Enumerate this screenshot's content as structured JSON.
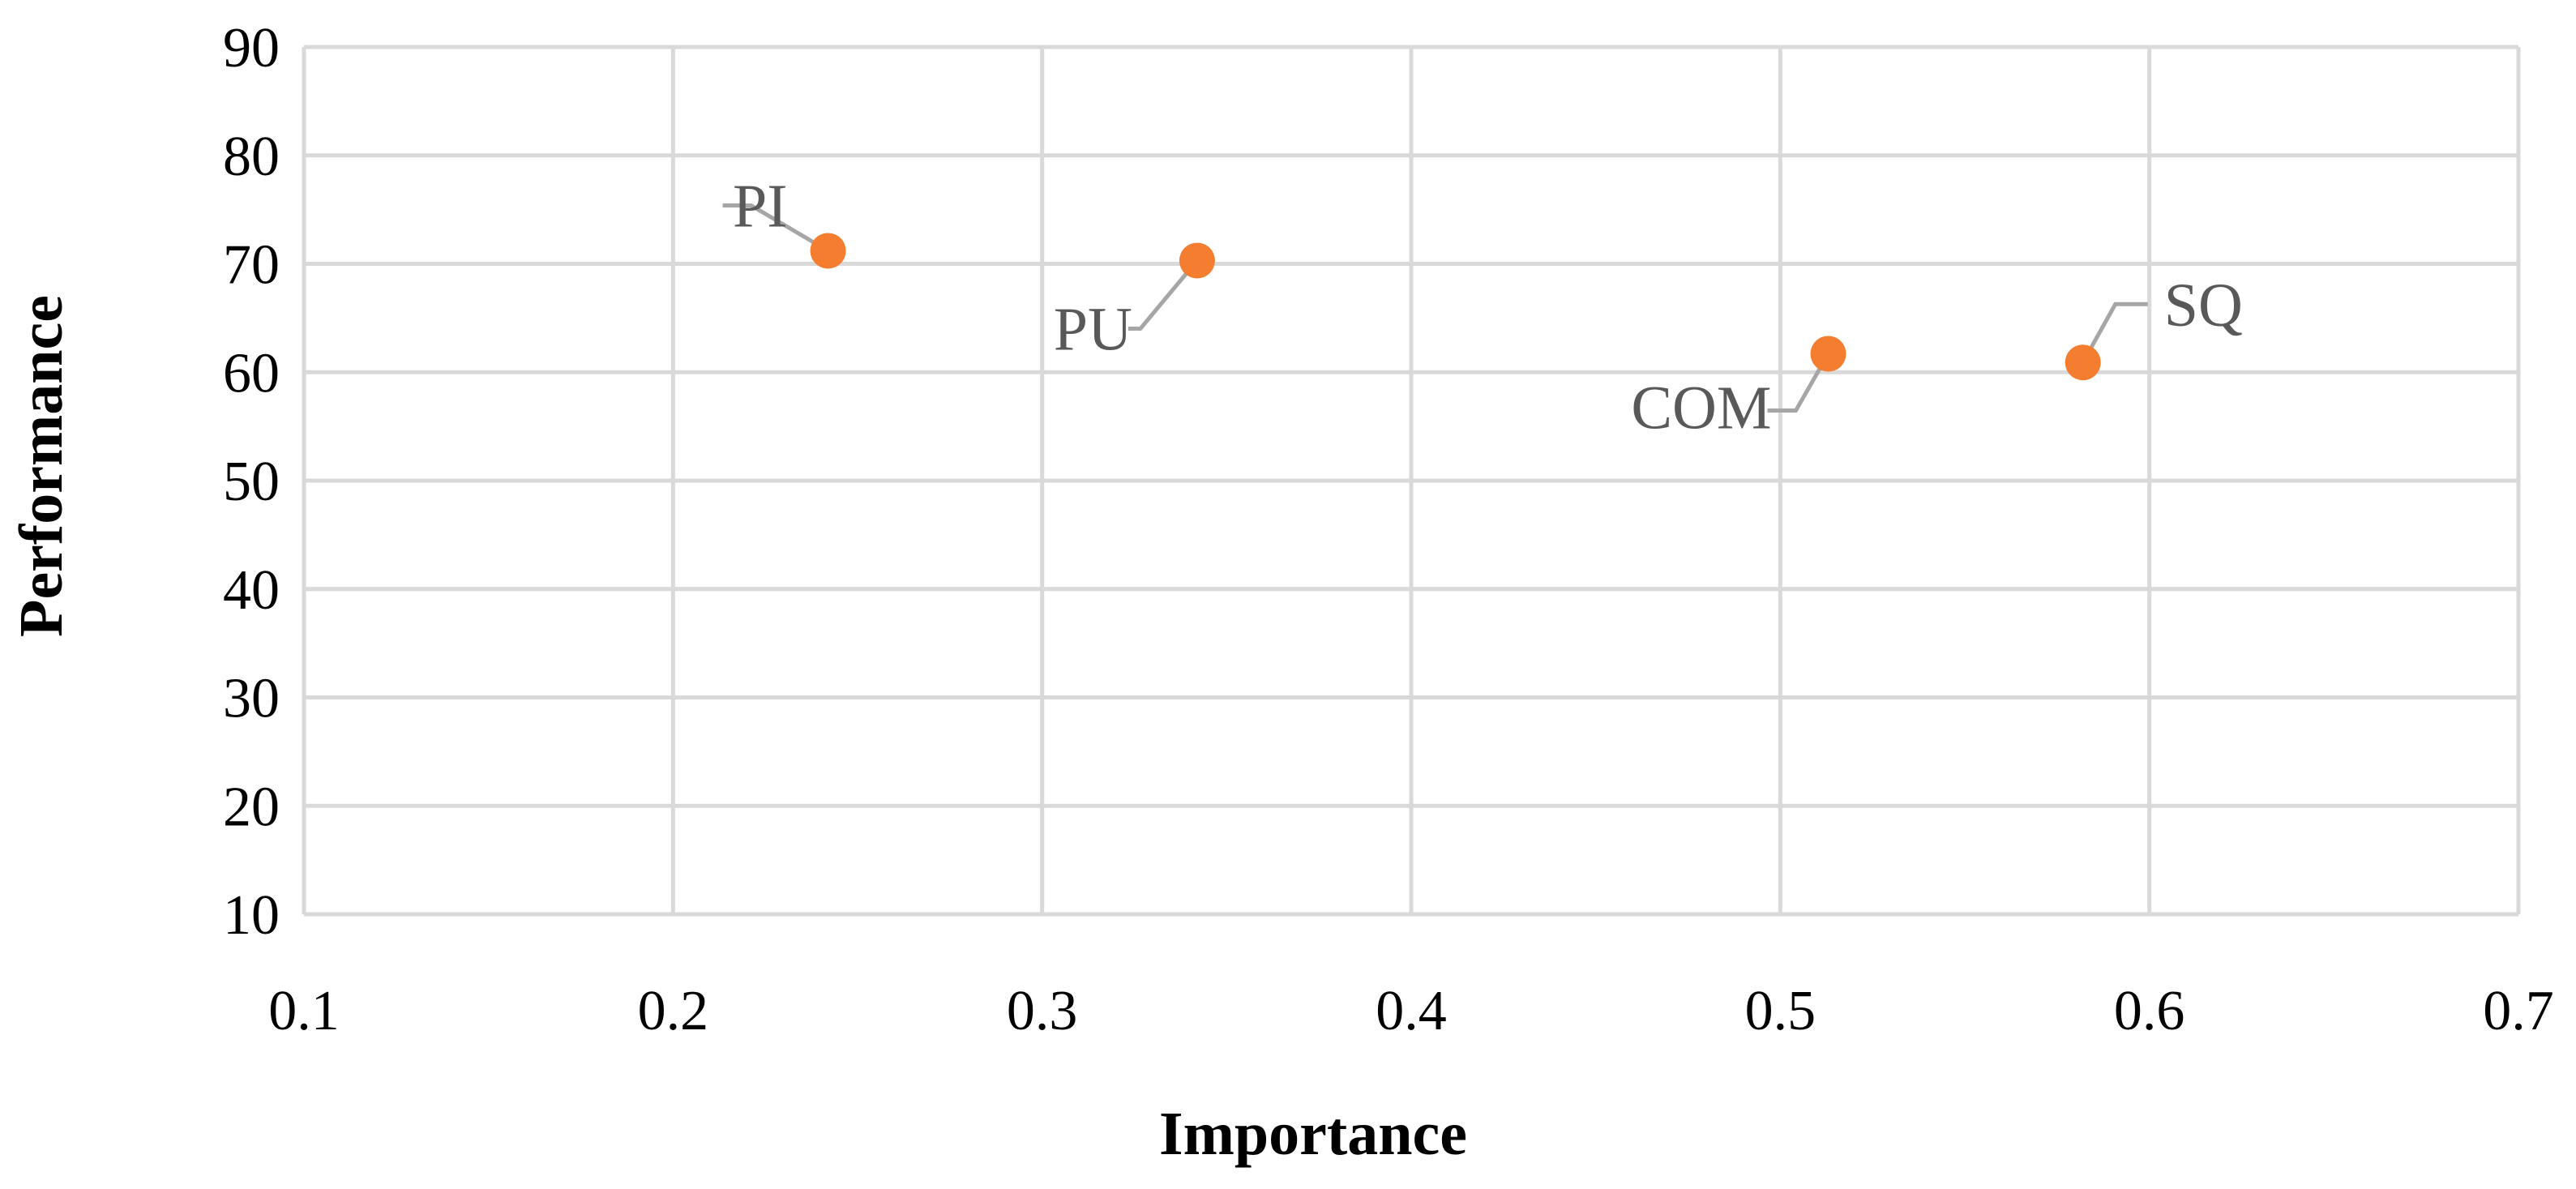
{
  "chart_data": {
    "type": "scatter",
    "title": "",
    "xlabel": "Importance",
    "ylabel": "Performance",
    "xlim": [
      0.1,
      0.7
    ],
    "ylim": [
      10,
      90
    ],
    "x_ticks": [
      0.1,
      0.2,
      0.3,
      0.4,
      0.5,
      0.6,
      0.7
    ],
    "x_tick_labels": [
      "0.1",
      "0.2",
      "0.3",
      "0.4",
      "0.5",
      "0.6",
      "0.7"
    ],
    "y_ticks": [
      10,
      20,
      30,
      40,
      50,
      60,
      70,
      80,
      90
    ],
    "y_tick_labels": [
      "10",
      "20",
      "30",
      "40",
      "50",
      "60",
      "70",
      "80",
      "90"
    ],
    "grid": true,
    "marker_color": "#F47D30",
    "grid_color": "#D9D9D9",
    "label_color": "#595959",
    "leader_color": "#A6A6A6",
    "points": [
      {
        "label": "PI",
        "x": 0.242,
        "y": 71.2
      },
      {
        "label": "PU",
        "x": 0.342,
        "y": 70.3
      },
      {
        "label": "COM",
        "x": 0.513,
        "y": 61.7
      },
      {
        "label": "SQ",
        "x": 0.582,
        "y": 60.9
      }
    ]
  }
}
